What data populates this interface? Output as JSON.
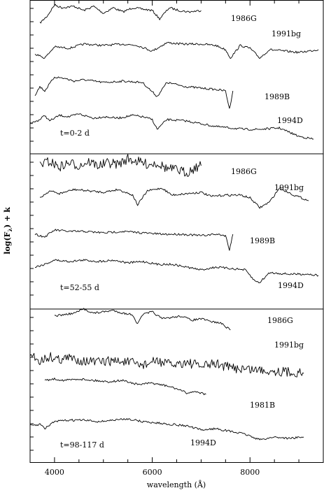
{
  "figure": {
    "ylabel": "log(F",
    "ylabel_sub": "λ",
    "ylabel_tail": ") + k",
    "xlabel": "wavelength (Å)"
  },
  "chart_data": {
    "type": "line",
    "xlim": [
      3500,
      9500
    ],
    "xticks": [
      4000,
      6000,
      8000
    ],
    "xlabel": "wavelength (Å)",
    "ylabel": "log(Fλ) + k",
    "grid": false,
    "panels": [
      {
        "epoch_label": "t=0-2 d",
        "series": [
          {
            "name": "1986G",
            "x": [
              3700,
              3850,
              4000,
              4150,
              4400,
              4600,
              4800,
              5000,
              5200,
              5400,
              5600,
              5800,
              6000,
              6150,
              6350,
              6550,
              6750,
              7000
            ],
            "y": [
              0.3,
              0.55,
              0.95,
              0.85,
              0.9,
              0.75,
              0.9,
              0.65,
              0.85,
              0.7,
              0.85,
              0.8,
              0.75,
              0.45,
              0.85,
              0.75,
              0.7,
              0.75
            ]
          },
          {
            "name": "1991bg",
            "x": [
              3600,
              3800,
              4000,
              4300,
              4600,
              5000,
              5400,
              5700,
              6000,
              6300,
              6600,
              7000,
              7300,
              7500,
              7600,
              7800,
              8000,
              8200,
              8400,
              8700,
              9000,
              9400
            ],
            "y": [
              0.2,
              0.05,
              0.45,
              0.4,
              0.55,
              0.5,
              0.55,
              0.5,
              0.3,
              0.6,
              0.55,
              0.55,
              0.5,
              0.35,
              0.05,
              0.5,
              0.4,
              0.05,
              0.35,
              0.3,
              0.25,
              0.35
            ]
          },
          {
            "name": "1989B",
            "x": [
              3600,
              3700,
              3800,
              4000,
              4200,
              4400,
              4600,
              5000,
              5400,
              5800,
              6100,
              6300,
              6700,
              7000,
              7300,
              7500,
              7580,
              7650
            ],
            "y": [
              0.1,
              0.4,
              0.25,
              0.75,
              0.7,
              0.6,
              0.65,
              0.55,
              0.6,
              0.55,
              0.05,
              0.55,
              0.4,
              0.35,
              0.3,
              0.25,
              -0.4,
              0.25
            ]
          },
          {
            "name": "1994D",
            "x": [
              3500,
              3700,
              3800,
              3900,
              4100,
              4300,
              4500,
              4800,
              5000,
              5300,
              5600,
              5800,
              6000,
              6100,
              6300,
              6700,
              7000,
              7300,
              7600,
              7900,
              8200,
              8600,
              9000,
              9300
            ],
            "y": [
              0.2,
              0.35,
              0.5,
              0.3,
              0.5,
              0.45,
              0.55,
              0.4,
              0.45,
              0.4,
              0.5,
              0.45,
              0.35,
              0.0,
              0.35,
              0.3,
              0.2,
              0.1,
              0.05,
              0.0,
              0.0,
              0.05,
              -0.25,
              -0.35
            ]
          }
        ]
      },
      {
        "epoch_label": "t=52-55 d",
        "series": [
          {
            "name": "1986G",
            "x": [
              3700,
              3900,
              4100,
              4300,
              4500,
              4700,
              4900,
              5100,
              5300,
              5500,
              5700,
              5900,
              6100,
              6300,
              6500,
              6700,
              6900,
              7000
            ],
            "y": [
              0.75,
              0.85,
              0.65,
              0.8,
              0.7,
              0.85,
              0.7,
              0.8,
              0.75,
              0.95,
              0.85,
              0.75,
              0.8,
              0.6,
              0.55,
              0.45,
              0.65,
              0.7
            ]
          },
          {
            "name": "1991bg",
            "x": [
              3700,
              3900,
              4100,
              4400,
              4700,
              5000,
              5300,
              5600,
              5700,
              5900,
              6200,
              6400,
              6700,
              7000,
              7200,
              7500,
              7800,
              8000,
              8200,
              8400,
              8600,
              8900,
              9200
            ],
            "y": [
              0.3,
              0.55,
              0.45,
              0.6,
              0.55,
              0.5,
              0.6,
              0.4,
              0.05,
              0.55,
              0.65,
              0.4,
              0.45,
              0.5,
              0.35,
              0.4,
              0.4,
              0.3,
              -0.05,
              0.15,
              0.65,
              0.4,
              0.2
            ]
          },
          {
            "name": "1989B",
            "x": [
              3600,
              3800,
              4000,
              4300,
              4600,
              5000,
              5400,
              5800,
              6200,
              6600,
              7000,
              7300,
              7500,
              7580,
              7650
            ],
            "y": [
              0.25,
              0.15,
              0.4,
              0.35,
              0.35,
              0.3,
              0.35,
              0.3,
              0.25,
              0.25,
              0.2,
              0.25,
              0.2,
              -0.3,
              0.25
            ]
          },
          {
            "name": "1994D",
            "x": [
              3600,
              3800,
              4000,
              4300,
              4600,
              4900,
              5200,
              5500,
              5800,
              6100,
              6400,
              6700,
              7000,
              7300,
              7600,
              7900,
              8100,
              8200,
              8400,
              8800,
              9200,
              9400
            ],
            "y": [
              0.2,
              0.3,
              0.45,
              0.4,
              0.45,
              0.4,
              0.45,
              0.35,
              0.4,
              0.3,
              0.3,
              0.2,
              0.1,
              0.2,
              0.15,
              0.1,
              -0.3,
              -0.35,
              0.0,
              -0.05,
              -0.05,
              -0.1
            ]
          }
        ]
      },
      {
        "epoch_label": "t=98-117 d",
        "series": [
          {
            "name": "1986G",
            "x": [
              4000,
              4200,
              4400,
              4600,
              4800,
              5000,
              5200,
              5400,
              5600,
              5700,
              5800,
              6000,
              6200,
              6400,
              6600,
              6800,
              7000,
              7200,
              7400,
              7600
            ],
            "y": [
              0.7,
              0.75,
              0.8,
              0.95,
              0.8,
              0.85,
              0.9,
              0.8,
              0.75,
              0.4,
              0.75,
              0.85,
              0.6,
              0.65,
              0.7,
              0.55,
              0.6,
              0.5,
              0.45,
              0.2
            ]
          },
          {
            "name": "1991bg",
            "x": [
              3500,
              3700,
              3900,
              4100,
              4300,
              4600,
              4900,
              5200,
              5500,
              5800,
              6100,
              6400,
              6700,
              7000,
              7300,
              7600,
              8000,
              8400,
              8800,
              9100
            ],
            "y": [
              0.35,
              0.1,
              0.25,
              0.15,
              0.2,
              0.1,
              0.05,
              0.1,
              0.05,
              -0.05,
              0.1,
              -0.05,
              0.05,
              -0.1,
              0.0,
              -0.15,
              -0.2,
              -0.25,
              -0.3,
              -0.35
            ]
          },
          {
            "name": "1981B",
            "x": [
              3800,
              4000,
              4200,
              4500,
              4800,
              5100,
              5400,
              5700,
              6000,
              6300,
              6500,
              6700,
              6900,
              7100
            ],
            "y": [
              0.4,
              0.45,
              0.4,
              0.45,
              0.4,
              0.35,
              0.4,
              0.25,
              0.3,
              0.2,
              0.1,
              -0.05,
              0.0,
              -0.1
            ]
          },
          {
            "name": "1994D",
            "x": [
              3500,
              3700,
              3800,
              4000,
              4300,
              4600,
              4900,
              5200,
              5500,
              5800,
              6100,
              6400,
              6700,
              7000,
              7300,
              7600,
              7900,
              8200,
              8500,
              8800,
              9100
            ],
            "y": [
              0.15,
              0.2,
              0.05,
              0.3,
              0.35,
              0.35,
              0.3,
              0.35,
              0.4,
              0.3,
              0.25,
              0.2,
              0.15,
              0.0,
              0.05,
              -0.05,
              -0.15,
              -0.35,
              -0.25,
              -0.3,
              -0.25
            ]
          }
        ]
      }
    ]
  }
}
